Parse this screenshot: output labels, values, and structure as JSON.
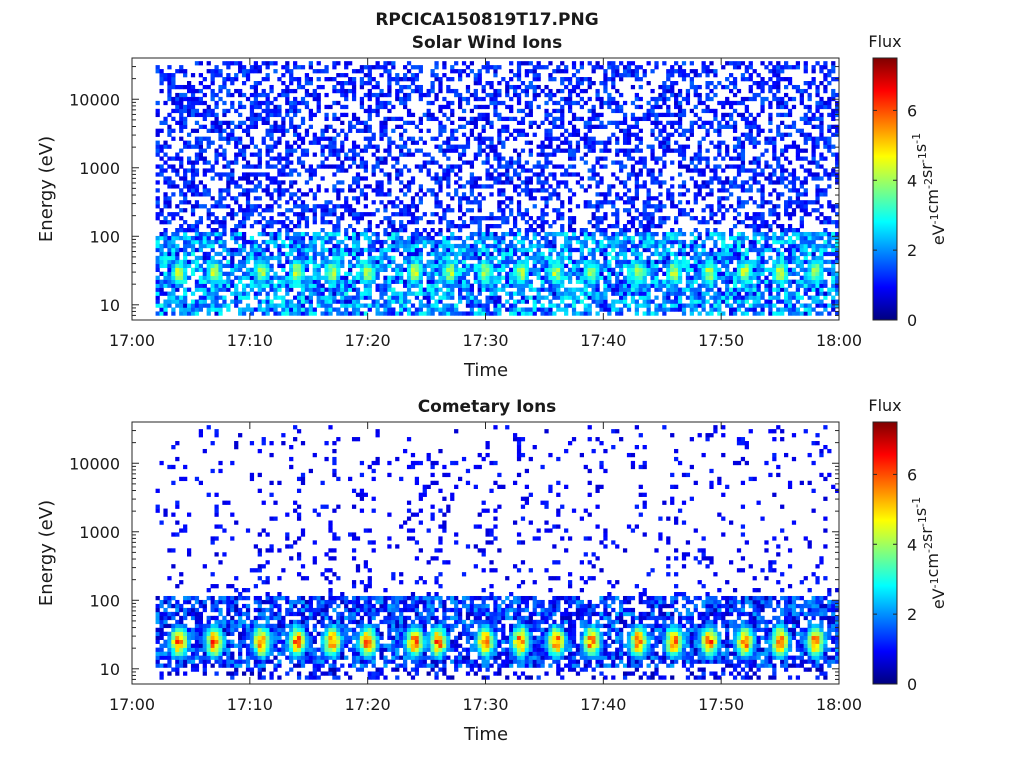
{
  "figure": {
    "title": "RPCICA150819T17.PNG"
  },
  "colormap": {
    "name": "jet",
    "stops": [
      "#00007f",
      "#0000ff",
      "#007fff",
      "#00ffff",
      "#7fff7f",
      "#ffff00",
      "#ff7f00",
      "#ff0000",
      "#7f0000"
    ]
  },
  "chart_data": [
    {
      "type": "heatmap",
      "title": "Solar Wind Ions",
      "xlabel": "Time",
      "ylabel": "Energy (eV)",
      "x_range": [
        "17:00",
        "18:00"
      ],
      "x_ticks": [
        "17:00",
        "17:10",
        "17:20",
        "17:30",
        "17:40",
        "17:50",
        "18:00"
      ],
      "y_scale": "log",
      "y_range": [
        6,
        40000
      ],
      "y_ticks": [
        10,
        100,
        1000,
        10000
      ],
      "y_tick_labels": [
        "10",
        "100",
        "1000",
        "10000"
      ],
      "data_start": "17:02",
      "colorbar": {
        "title": "Flux",
        "label": "eV-1cm-2sr-1s-1",
        "range": [
          0,
          7.5
        ],
        "ticks": [
          0,
          2,
          4,
          6
        ],
        "tick_labels": [
          "0",
          "2",
          "4",
          "6"
        ]
      },
      "features": {
        "background_flux": 1.2,
        "background_density": 0.45,
        "peak_times": [
          "17:04",
          "17:07",
          "17:11",
          "17:14",
          "17:17",
          "17:20",
          "17:24",
          "17:27",
          "17:30",
          "17:33",
          "17:36",
          "17:39",
          "17:43",
          "17:46",
          "17:49",
          "17:52",
          "17:55",
          "17:58"
        ],
        "peak_energy_eV": 30,
        "peak_flux": 4.8
      }
    },
    {
      "type": "heatmap",
      "title": "Cometary Ions",
      "xlabel": "Time",
      "ylabel": "Energy (eV)",
      "x_range": [
        "17:00",
        "18:00"
      ],
      "x_ticks": [
        "17:00",
        "17:10",
        "17:20",
        "17:30",
        "17:40",
        "17:50",
        "18:00"
      ],
      "y_scale": "log",
      "y_range": [
        6,
        40000
      ],
      "y_ticks": [
        10,
        100,
        1000,
        10000
      ],
      "y_tick_labels": [
        "10",
        "100",
        "1000",
        "10000"
      ],
      "data_start": "17:02",
      "colorbar": {
        "title": "Flux",
        "label": "eV-1cm-2sr-1s-1",
        "range": [
          0,
          7.5
        ],
        "ticks": [
          0,
          2,
          4,
          6
        ],
        "tick_labels": [
          "0",
          "2",
          "4",
          "6"
        ]
      },
      "features": {
        "background_flux": 1.0,
        "background_density": 0.05,
        "dense_band_eV": [
          10,
          110
        ],
        "peak_times": [
          "17:04",
          "17:07",
          "17:11",
          "17:14",
          "17:17",
          "17:20",
          "17:24",
          "17:26",
          "17:30",
          "17:33",
          "17:36",
          "17:39",
          "17:43",
          "17:46",
          "17:49",
          "17:52",
          "17:55",
          "17:58"
        ],
        "peak_energy_eV": 25,
        "peak_flux": 6.8
      }
    }
  ]
}
